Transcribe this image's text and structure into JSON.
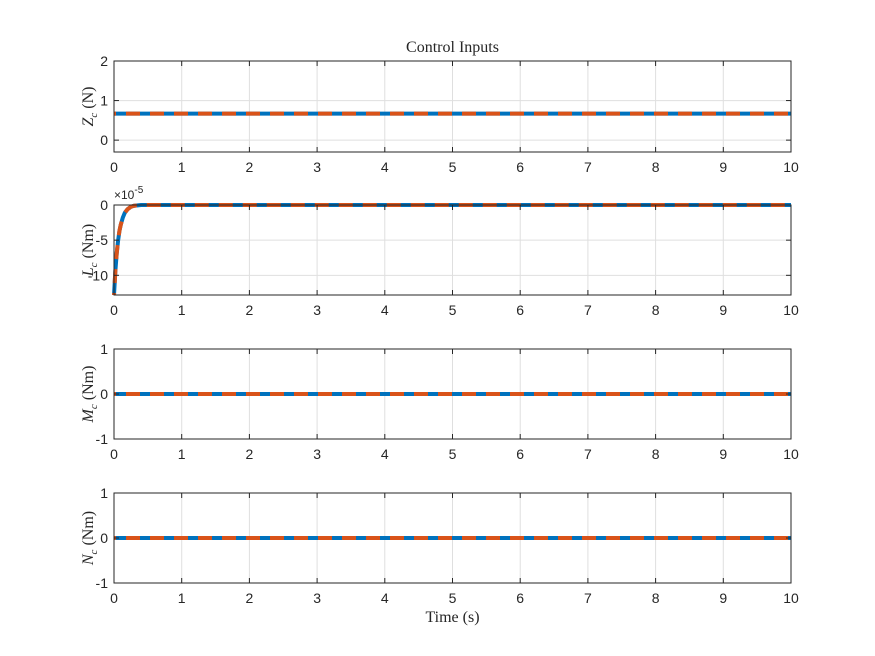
{
  "chart_data": [
    {
      "type": "line",
      "title": "Control Inputs",
      "ylabel": {
        "symbol": "Z",
        "sub": "c",
        "unit": " (N)"
      },
      "xlabel": "",
      "xlim": [
        0,
        10
      ],
      "ylim": [
        -0.3,
        2
      ],
      "xticks": [
        0,
        1,
        2,
        3,
        4,
        5,
        6,
        7,
        8,
        9,
        10
      ],
      "yticks": [
        0,
        1,
        2
      ],
      "exponent": "",
      "grid": true,
      "series": [
        {
          "color": "#0072BD",
          "style": "solid",
          "x": [
            0,
            10
          ],
          "y": [
            0.67,
            0.67
          ]
        },
        {
          "color": "#D95319",
          "style": "dashed",
          "x": [
            0,
            10
          ],
          "y": [
            0.67,
            0.67
          ]
        }
      ]
    },
    {
      "type": "line",
      "title": "",
      "ylabel": {
        "symbol": "L",
        "sub": "c",
        "unit": " (Nm)"
      },
      "xlabel": "",
      "xlim": [
        0,
        10
      ],
      "ylim": [
        -12.8,
        0
      ],
      "xticks": [
        0,
        1,
        2,
        3,
        4,
        5,
        6,
        7,
        8,
        9,
        10
      ],
      "yticks": [
        0,
        -5,
        -10
      ],
      "exponent": "-5",
      "grid": true,
      "series": [
        {
          "color": "#0072BD",
          "style": "solid",
          "x": [
            0,
            0.02,
            0.04,
            0.06,
            0.08,
            0.1,
            0.13,
            0.16,
            0.2,
            0.25,
            0.3,
            0.4,
            0.5,
            0.7,
            1.0,
            10
          ],
          "y": [
            -12.8,
            -9.4,
            -6.9,
            -5.1,
            -3.7,
            -2.8,
            -1.8,
            -1.1,
            -0.6,
            -0.25,
            -0.1,
            0,
            0.05,
            0.02,
            0,
            0
          ]
        },
        {
          "color": "#D95319",
          "style": "dashed",
          "x": [
            0,
            0.02,
            0.04,
            0.06,
            0.08,
            0.1,
            0.13,
            0.16,
            0.2,
            0.25,
            0.3,
            0.4,
            0.5,
            0.7,
            1.0,
            10
          ],
          "y": [
            -12.8,
            -9.4,
            -6.9,
            -5.1,
            -3.7,
            -2.8,
            -1.8,
            -1.1,
            -0.6,
            -0.25,
            -0.1,
            0,
            0.05,
            0.02,
            0,
            0
          ]
        }
      ]
    },
    {
      "type": "line",
      "title": "",
      "ylabel": {
        "symbol": "M",
        "sub": "c",
        "unit": " (Nm)"
      },
      "xlabel": "",
      "xlim": [
        0,
        10
      ],
      "ylim": [
        -1,
        1
      ],
      "xticks": [
        0,
        1,
        2,
        3,
        4,
        5,
        6,
        7,
        8,
        9,
        10
      ],
      "yticks": [
        -1,
        0,
        1
      ],
      "exponent": "",
      "grid": true,
      "series": [
        {
          "color": "#0072BD",
          "style": "solid",
          "x": [
            0,
            10
          ],
          "y": [
            0,
            0
          ]
        },
        {
          "color": "#D95319",
          "style": "dashed",
          "x": [
            0,
            10
          ],
          "y": [
            0,
            0
          ]
        }
      ]
    },
    {
      "type": "line",
      "title": "",
      "ylabel": {
        "symbol": "N",
        "sub": "c",
        "unit": " (Nm)"
      },
      "xlabel": "Time (s)",
      "xlim": [
        0,
        10
      ],
      "ylim": [
        -1,
        1
      ],
      "xticks": [
        0,
        1,
        2,
        3,
        4,
        5,
        6,
        7,
        8,
        9,
        10
      ],
      "yticks": [
        -1,
        0,
        1
      ],
      "exponent": "",
      "grid": true,
      "series": [
        {
          "color": "#0072BD",
          "style": "solid",
          "x": [
            0,
            10
          ],
          "y": [
            0,
            0
          ]
        },
        {
          "color": "#D95319",
          "style": "dashed",
          "x": [
            0,
            10
          ],
          "y": [
            0,
            0
          ]
        }
      ]
    }
  ]
}
